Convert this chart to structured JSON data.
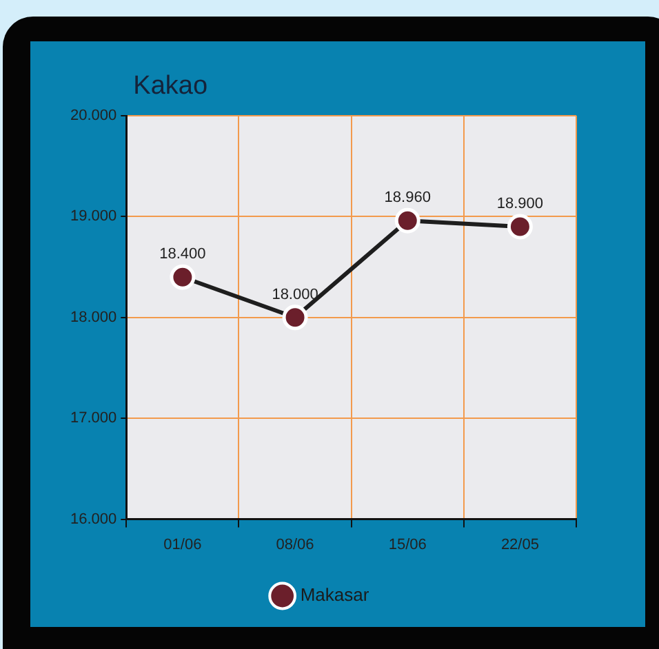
{
  "chart_data": {
    "type": "line",
    "title": "Kakao",
    "categories": [
      "01/06",
      "08/06",
      "15/06",
      "22/05"
    ],
    "series": [
      {
        "name": "Makasar",
        "color": "#6b1f2b",
        "values": [
          18400,
          18000,
          18960,
          18900
        ],
        "value_labels": [
          "18.400",
          "18.000",
          "18.960",
          "18.900"
        ]
      }
    ],
    "ylim": [
      16000,
      20000
    ],
    "yticks": [
      {
        "value": 16000,
        "label": "16.000"
      },
      {
        "value": 17000,
        "label": "17.000"
      },
      {
        "value": 18000,
        "label": "18.000"
      },
      {
        "value": 19000,
        "label": "19.000"
      },
      {
        "value": 20000,
        "label": "20.000"
      }
    ],
    "grid": true,
    "legend": "bottom",
    "marker": "circle",
    "line_style": "solid"
  }
}
